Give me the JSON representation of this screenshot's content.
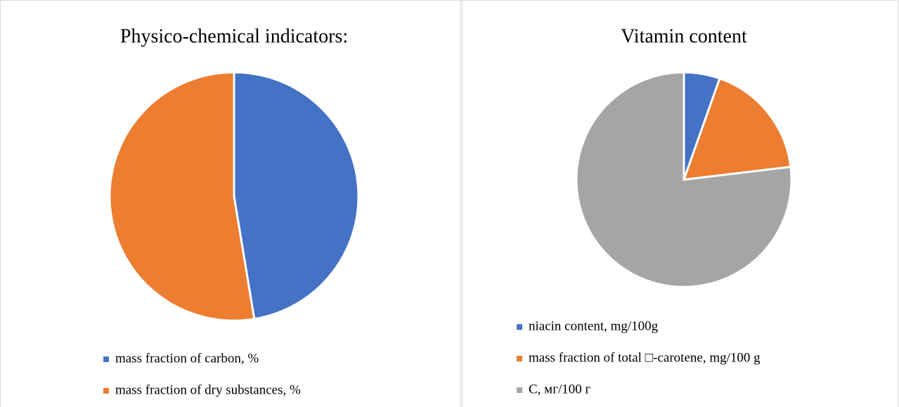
{
  "chart_data": [
    {
      "type": "pie",
      "title": "Physico-chemical indicators:",
      "categories": [
        "mass fraction of carbon, %",
        "mass fraction of dry substances, %"
      ],
      "values": [
        47.4,
        52.6
      ],
      "colors": [
        "#4472c4",
        "#ed7d31"
      ],
      "legend": "bottom"
    },
    {
      "type": "pie",
      "title": "Vitamin content",
      "categories": [
        "niacin content, mg/100g",
        "mass fraction of total □-carotene, mg/100 g",
        "C, мг/100 г"
      ],
      "values": [
        5.4,
        17.7,
        76.9
      ],
      "colors": [
        "#4472c4",
        "#ed7d31",
        "#a5a5a5"
      ],
      "legend": "bottom"
    }
  ]
}
